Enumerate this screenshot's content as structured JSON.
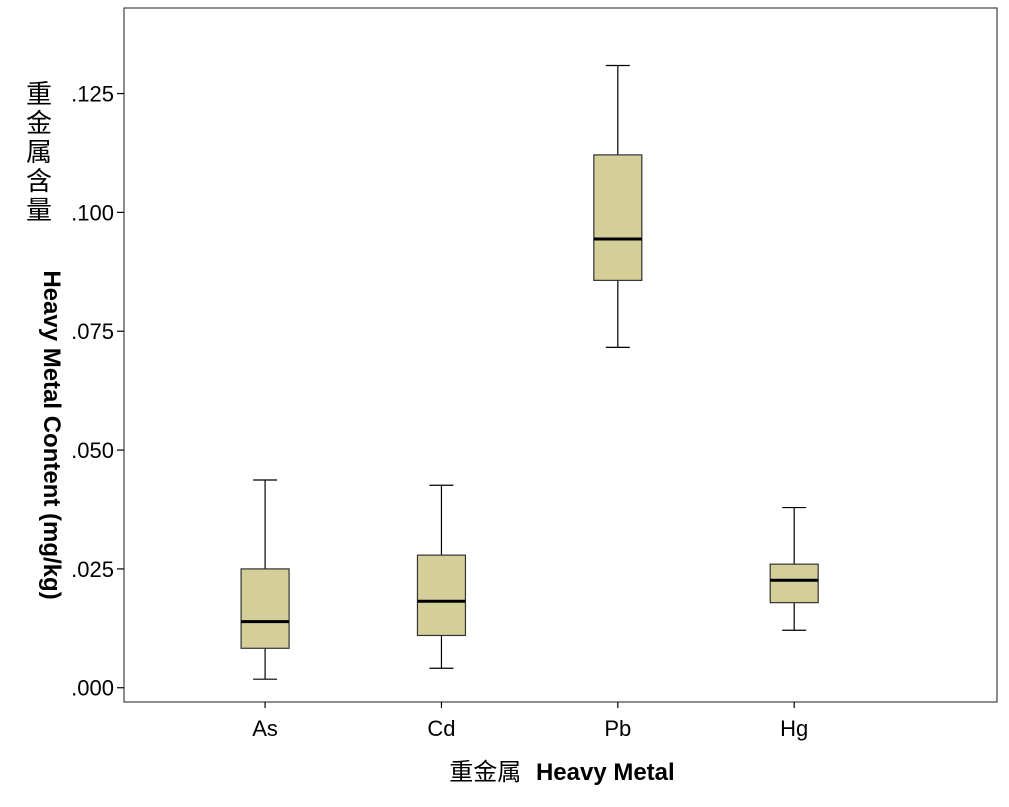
{
  "chart_data": {
    "type": "box",
    "xlabel_cjk": "重金属",
    "xlabel_en": "Heavy Metal",
    "ylabel_cjk": "重金属含量",
    "ylabel_en": "Heavy Metal Content (mg/kg)",
    "ylim": [
      -0.003,
      0.143
    ],
    "y_ticks": [
      0.0,
      0.025,
      0.05,
      0.075,
      0.1,
      0.125
    ],
    "y_tick_labels": [
      ".000",
      ".025",
      ".050",
      ".075",
      ".100",
      ".125"
    ],
    "categories": [
      "As",
      "Cd",
      "Pb",
      "Hg"
    ],
    "box_color": "#d4cf98",
    "median_color": "#000000",
    "boxes": [
      {
        "label": "As",
        "min": 0.0018,
        "q1": 0.0083,
        "median": 0.0139,
        "q3": 0.025,
        "max": 0.0437
      },
      {
        "label": "Cd",
        "min": 0.0041,
        "q1": 0.011,
        "median": 0.0182,
        "q3": 0.0279,
        "max": 0.0426
      },
      {
        "label": "Pb",
        "min": 0.0716,
        "q1": 0.0857,
        "median": 0.0944,
        "q3": 0.1121,
        "max": 0.1309
      },
      {
        "label": "Hg",
        "min": 0.0121,
        "q1": 0.0179,
        "median": 0.0226,
        "q3": 0.026,
        "max": 0.0379
      }
    ],
    "grid": false,
    "legend": "none"
  }
}
